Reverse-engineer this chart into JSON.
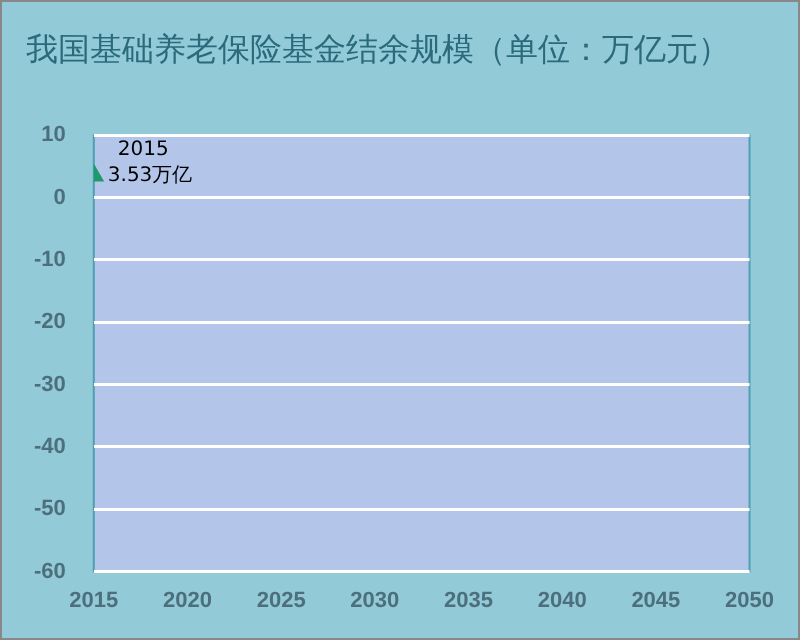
{
  "chart_data": {
    "type": "scatter",
    "title": "我国基础养老保险基金结余规模（单位：万亿元）",
    "x": [
      2015
    ],
    "values": [
      3.53
    ],
    "color": "#1f9a6a",
    "marker": "triangle",
    "value_labels": [
      "3.53万亿"
    ],
    "annotations": [
      {
        "text": "2015",
        "x": 2015,
        "y": 3.53
      }
    ],
    "xlim": [
      2015,
      2050
    ],
    "xticks": [
      2015,
      2020,
      2025,
      2030,
      2035,
      2040,
      2045,
      2050
    ],
    "ylim": [
      -60,
      10
    ],
    "yticks": [
      -60,
      -50,
      -40,
      -30,
      -20,
      -10,
      0,
      10
    ],
    "grid": "y",
    "legend": false
  }
}
